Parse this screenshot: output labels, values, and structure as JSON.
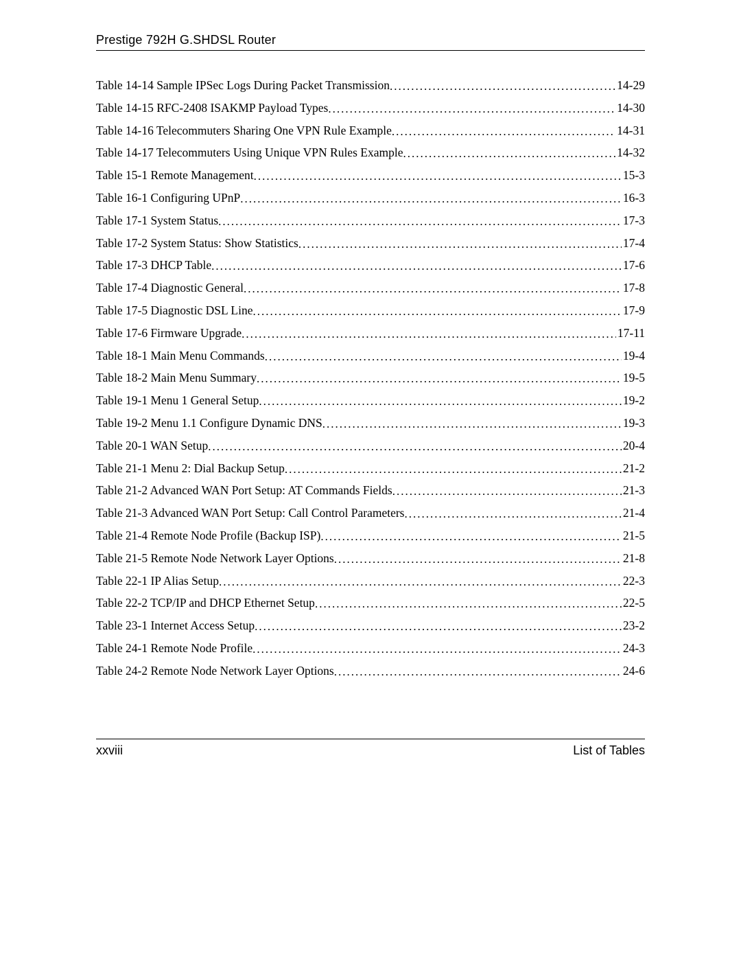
{
  "header": {
    "title": "Prestige 792H G.SHDSL Router"
  },
  "toc": {
    "entries": [
      {
        "label": "Table 14-14 Sample IPSec Logs During Packet Transmission",
        "page": "14-29"
      },
      {
        "label": "Table 14-15 RFC-2408 ISAKMP Payload Types",
        "page": "14-30"
      },
      {
        "label": "Table 14-16 Telecommuters Sharing One VPN Rule Example",
        "page": "14-31"
      },
      {
        "label": "Table 14-17 Telecommuters Using Unique VPN Rules Example",
        "page": "14-32"
      },
      {
        "label": "Table 15-1 Remote Management",
        "page": "15-3"
      },
      {
        "label": "Table 16-1 Configuring UPnP",
        "page": "16-3"
      },
      {
        "label": "Table 17-1 System Status",
        "page": "17-3"
      },
      {
        "label": "Table 17-2 System Status: Show Statistics",
        "page": "17-4"
      },
      {
        "label": "Table 17-3 DHCP Table",
        "page": "17-6"
      },
      {
        "label": "Table 17-4 Diagnostic General",
        "page": "17-8"
      },
      {
        "label": "Table 17-5 Diagnostic DSL Line",
        "page": "17-9"
      },
      {
        "label": "Table 17-6 Firmware Upgrade",
        "page": "17-11"
      },
      {
        "label": "Table 18-1 Main Menu Commands",
        "page": "19-4"
      },
      {
        "label": "Table 18-2 Main Menu Summary",
        "page": "19-5"
      },
      {
        "label": "Table 19-1 Menu 1 General Setup",
        "page": "19-2"
      },
      {
        "label": "Table 19-2 Menu 1.1 Configure Dynamic DNS",
        "page": "19-3"
      },
      {
        "label": "Table 20-1 WAN Setup",
        "page": "20-4"
      },
      {
        "label": "Table 21-1 Menu 2: Dial Backup Setup",
        "page": "21-2"
      },
      {
        "label": "Table 21-2 Advanced WAN Port Setup: AT Commands Fields",
        "page": "21-3"
      },
      {
        "label": "Table 21-3 Advanced WAN Port Setup: Call Control Parameters",
        "page": "21-4"
      },
      {
        "label": "Table 21-4 Remote Node Profile (Backup ISP)",
        "page": "21-5"
      },
      {
        "label": "Table 21-5 Remote Node Network Layer Options",
        "page": "21-8"
      },
      {
        "label": "Table 22-1 IP Alias Setup",
        "page": "22-3"
      },
      {
        "label": "Table 22-2 TCP/IP and DHCP Ethernet Setup",
        "page": "22-5"
      },
      {
        "label": "Table 23-1 Internet Access Setup",
        "page": "23-2"
      },
      {
        "label": "Table 24-1 Remote Node Profile",
        "page": "24-3"
      },
      {
        "label": "Table 24-2 Remote Node Network Layer Options",
        "page": "24-6"
      }
    ]
  },
  "footer": {
    "page_number": "xxviii",
    "section": "List of Tables"
  }
}
